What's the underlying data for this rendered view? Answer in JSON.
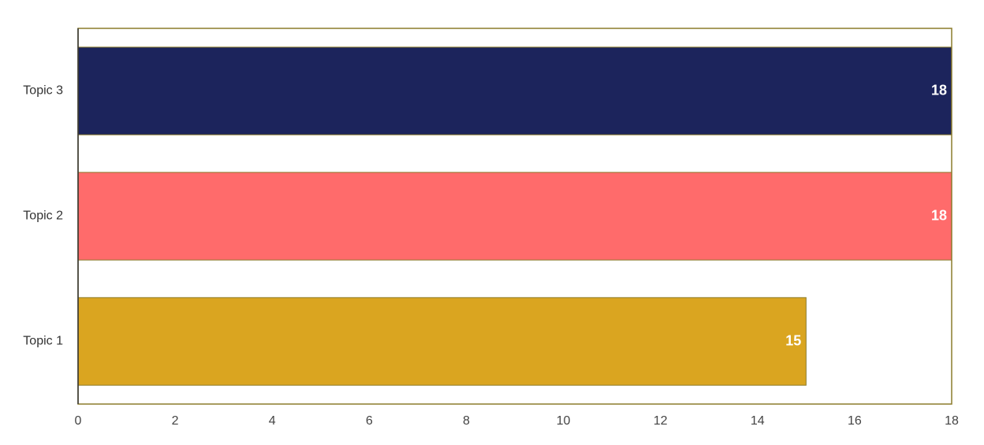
{
  "chart_data": {
    "type": "bar",
    "orientation": "horizontal",
    "categories": [
      "Topic 1",
      "Topic 2",
      "Topic 3"
    ],
    "values": [
      15,
      18,
      18
    ],
    "colors": [
      "#DAA520",
      "#FF6B6B",
      "#1C245C"
    ],
    "title": "",
    "xlabel": "",
    "ylabel": "",
    "xlim": [
      0,
      18
    ],
    "x_ticks": [
      "0",
      "2",
      "4",
      "6",
      "8",
      "10",
      "12",
      "14",
      "16",
      "18"
    ],
    "data_labels": [
      "15",
      "18",
      "18"
    ],
    "grid": false,
    "legend": "none",
    "axis_color": "#8B7B2A",
    "bar_edge_color": "#8B7B2A"
  }
}
